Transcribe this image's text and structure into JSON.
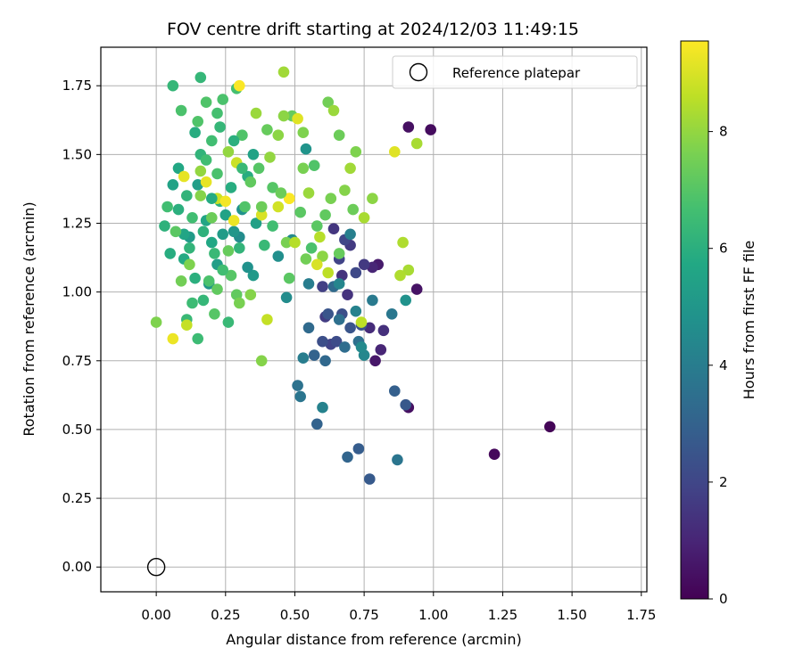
{
  "chart_data": {
    "type": "scatter",
    "title": "FOV centre drift starting at 2024/12/03 11:49:15",
    "xlabel": "Angular distance from reference (arcmin)",
    "ylabel": "Rotation from reference (arcmin)",
    "xlim": [
      -0.2,
      1.77
    ],
    "ylim": [
      -0.09,
      1.89
    ],
    "xticks": [
      "0.00",
      "0.25",
      "0.50",
      "0.75",
      "1.00",
      "1.25",
      "1.50",
      "1.75"
    ],
    "yticks": [
      "0.00",
      "0.25",
      "0.50",
      "0.75",
      "1.00",
      "1.25",
      "1.50",
      "1.75"
    ],
    "grid": true,
    "legend": {
      "position": "top-right",
      "entries": [
        "Reference platepar"
      ]
    },
    "reference_point": {
      "x": 0.0,
      "y": 0.0,
      "marker": "open-circle"
    },
    "colorbar": {
      "label": "Hours from first FF file",
      "min": 0,
      "max": 9.55,
      "ticks": [
        "0",
        "2",
        "4",
        "6",
        "8"
      ],
      "colormap": "viridis"
    },
    "series": [
      {
        "points": [
          [
            1.42,
            0.51,
            0.1
          ],
          [
            1.22,
            0.41,
            0.2
          ],
          [
            0.99,
            1.59,
            0.3
          ],
          [
            0.91,
            1.6,
            0.4
          ],
          [
            0.91,
            0.58,
            0.4
          ],
          [
            0.94,
            1.01,
            0.5
          ],
          [
            0.79,
            0.75,
            0.6
          ],
          [
            0.8,
            1.1,
            0.7
          ],
          [
            0.78,
            1.09,
            1.0
          ],
          [
            0.81,
            0.79,
            1.0
          ],
          [
            0.77,
            0.87,
            1.2
          ],
          [
            0.82,
            0.86,
            1.3
          ],
          [
            0.69,
            0.99,
            1.4
          ],
          [
            0.67,
            1.06,
            1.4
          ],
          [
            0.64,
            1.23,
            1.5
          ],
          [
            0.7,
            1.17,
            1.6
          ],
          [
            0.75,
            1.1,
            1.6
          ],
          [
            0.61,
            0.91,
            1.7
          ],
          [
            0.6,
            1.02,
            1.8
          ],
          [
            0.63,
            0.81,
            1.9
          ],
          [
            0.66,
            1.12,
            1.9
          ],
          [
            0.68,
            1.19,
            2.0
          ],
          [
            0.72,
            1.07,
            2.1
          ],
          [
            0.65,
            0.82,
            2.2
          ],
          [
            0.6,
            0.82,
            2.3
          ],
          [
            0.67,
            0.92,
            2.3
          ],
          [
            0.74,
            0.88,
            2.4
          ],
          [
            0.62,
            0.92,
            2.5
          ],
          [
            0.7,
            0.87,
            2.5
          ],
          [
            0.9,
            0.59,
            2.6
          ],
          [
            0.77,
            0.32,
            2.7
          ],
          [
            0.73,
            0.43,
            2.8
          ],
          [
            0.86,
            0.64,
            2.9
          ],
          [
            0.58,
            0.52,
            3.0
          ],
          [
            0.57,
            0.77,
            3.0
          ],
          [
            0.69,
            0.4,
            3.1
          ],
          [
            0.61,
            0.75,
            3.2
          ],
          [
            0.55,
            0.87,
            3.3
          ],
          [
            0.64,
            1.02,
            3.3
          ],
          [
            0.68,
            0.8,
            3.4
          ],
          [
            0.73,
            0.82,
            3.5
          ],
          [
            0.66,
            0.9,
            3.5
          ],
          [
            0.51,
            0.66,
            3.6
          ],
          [
            0.52,
            0.62,
            3.7
          ],
          [
            0.87,
            0.39,
            3.7
          ],
          [
            0.85,
            0.92,
            3.8
          ],
          [
            0.78,
            0.97,
            3.9
          ],
          [
            0.55,
            1.03,
            4.0
          ],
          [
            0.53,
            0.76,
            4.0
          ],
          [
            0.7,
            1.21,
            4.1
          ],
          [
            0.72,
            0.93,
            4.2
          ],
          [
            0.6,
            0.58,
            4.2
          ],
          [
            0.66,
            1.03,
            4.3
          ],
          [
            0.75,
            0.77,
            4.4
          ],
          [
            0.74,
            0.8,
            4.5
          ],
          [
            0.49,
            1.19,
            4.5
          ],
          [
            0.47,
            0.98,
            4.6
          ],
          [
            0.3,
            1.2,
            4.6
          ],
          [
            0.44,
            1.13,
            4.7
          ],
          [
            0.31,
            1.3,
            4.8
          ],
          [
            0.9,
            0.97,
            4.8
          ],
          [
            0.54,
            1.52,
            4.9
          ],
          [
            0.19,
            1.03,
            5.0
          ],
          [
            0.28,
            1.22,
            5.0
          ],
          [
            0.35,
            1.06,
            5.1
          ],
          [
            0.12,
            1.2,
            5.2
          ],
          [
            0.15,
            1.39,
            5.3
          ],
          [
            0.22,
            1.1,
            5.3
          ],
          [
            0.36,
            1.25,
            5.4
          ],
          [
            0.25,
            1.28,
            5.5
          ],
          [
            0.06,
            1.39,
            5.5
          ],
          [
            0.18,
            1.26,
            5.6
          ],
          [
            0.08,
            1.45,
            5.7
          ],
          [
            0.2,
            1.18,
            5.7
          ],
          [
            0.1,
            1.12,
            5.8
          ],
          [
            0.27,
            1.38,
            5.9
          ],
          [
            0.33,
            1.42,
            5.9
          ],
          [
            0.14,
            1.05,
            6.0
          ],
          [
            0.03,
            1.24,
            6.1
          ],
          [
            0.23,
            1.33,
            6.1
          ],
          [
            0.16,
            1.5,
            6.2
          ],
          [
            0.3,
            1.16,
            6.2
          ],
          [
            0.06,
            1.75,
            6.3
          ],
          [
            0.16,
            1.78,
            6.3
          ],
          [
            0.26,
            0.89,
            6.4
          ],
          [
            0.11,
            0.9,
            6.4
          ],
          [
            0.15,
            0.83,
            6.5
          ],
          [
            0.13,
            0.96,
            6.5
          ],
          [
            0.04,
            1.31,
            6.6
          ],
          [
            0.2,
            1.55,
            6.6
          ],
          [
            0.29,
            1.74,
            6.7
          ],
          [
            0.22,
            1.65,
            6.7
          ],
          [
            0.09,
            1.66,
            6.8
          ],
          [
            0.24,
            1.7,
            6.8
          ],
          [
            0.18,
            1.69,
            6.9
          ],
          [
            0.31,
            1.57,
            6.9
          ],
          [
            0.37,
            1.45,
            7.0
          ],
          [
            0.42,
            1.38,
            7.0
          ],
          [
            0.58,
            1.24,
            7.1
          ],
          [
            0.48,
            1.05,
            7.1
          ],
          [
            0.29,
            0.99,
            7.2
          ],
          [
            0.22,
            1.01,
            7.2
          ],
          [
            0.4,
            1.59,
            7.3
          ],
          [
            0.49,
            1.64,
            7.3
          ],
          [
            0.66,
            1.57,
            7.4
          ],
          [
            0.71,
            1.3,
            7.4
          ],
          [
            0.62,
            1.69,
            7.5
          ],
          [
            0.54,
            1.12,
            7.5
          ],
          [
            0.53,
            1.45,
            7.6
          ],
          [
            0.47,
            1.18,
            7.6
          ],
          [
            0.0,
            0.89,
            7.7
          ],
          [
            0.38,
            0.75,
            7.8
          ],
          [
            0.34,
            0.99,
            7.8
          ],
          [
            0.6,
            1.13,
            7.9
          ],
          [
            0.44,
            1.57,
            7.9
          ],
          [
            0.26,
            1.51,
            8.0
          ],
          [
            0.16,
            1.44,
            8.0
          ],
          [
            0.55,
            1.36,
            8.1
          ],
          [
            0.64,
            1.66,
            8.1
          ],
          [
            0.36,
            1.65,
            8.1
          ],
          [
            0.46,
            1.8,
            8.2
          ],
          [
            0.7,
            1.45,
            8.2
          ],
          [
            0.94,
            1.54,
            8.3
          ],
          [
            0.91,
            1.08,
            8.3
          ],
          [
            0.89,
            1.18,
            8.4
          ],
          [
            0.88,
            1.06,
            8.4
          ],
          [
            0.5,
            1.18,
            8.5
          ],
          [
            0.59,
            1.2,
            8.5
          ],
          [
            0.62,
            1.07,
            8.6
          ],
          [
            0.74,
            0.89,
            8.6
          ],
          [
            0.4,
            0.9,
            8.7
          ],
          [
            0.11,
            0.88,
            8.7
          ],
          [
            0.29,
            1.47,
            8.8
          ],
          [
            0.22,
            1.34,
            8.8
          ],
          [
            0.44,
            1.31,
            8.9
          ],
          [
            0.48,
            1.34,
            8.9
          ],
          [
            0.38,
            1.28,
            9.0
          ],
          [
            0.58,
            1.1,
            9.0
          ],
          [
            0.86,
            1.51,
            9.1
          ],
          [
            0.51,
            1.63,
            9.1
          ],
          [
            0.1,
            1.42,
            9.2
          ],
          [
            0.18,
            1.4,
            9.2
          ],
          [
            0.28,
            1.26,
            9.3
          ],
          [
            0.06,
            0.83,
            9.3
          ],
          [
            0.25,
            1.33,
            9.4
          ],
          [
            0.3,
            1.75,
            9.5
          ],
          [
            0.48,
            1.34,
            9.5
          ],
          [
            0.08,
            1.3,
            6.0
          ],
          [
            0.12,
            1.16,
            6.2
          ],
          [
            0.2,
            1.34,
            5.8
          ],
          [
            0.21,
            1.14,
            6.4
          ],
          [
            0.24,
            1.21,
            5.2
          ],
          [
            0.13,
            1.27,
            6.6
          ],
          [
            0.19,
            1.04,
            6.8
          ],
          [
            0.27,
            1.06,
            7.0
          ],
          [
            0.33,
            1.09,
            4.8
          ],
          [
            0.14,
            1.58,
            5.9
          ],
          [
            0.23,
            1.6,
            6.3
          ],
          [
            0.32,
            1.31,
            6.9
          ],
          [
            0.35,
            1.5,
            5.5
          ],
          [
            0.1,
            1.21,
            5.6
          ],
          [
            0.05,
            1.14,
            5.9
          ],
          [
            0.17,
            1.22,
            6.1
          ],
          [
            0.26,
            1.15,
            7.3
          ],
          [
            0.42,
            1.24,
            6.6
          ],
          [
            0.45,
            1.36,
            7.4
          ],
          [
            0.39,
            1.17,
            6.4
          ],
          [
            0.52,
            1.29,
            7.1
          ],
          [
            0.57,
            1.46,
            6.9
          ],
          [
            0.63,
            1.34,
            7.6
          ],
          [
            0.68,
            1.37,
            7.8
          ],
          [
            0.75,
            1.27,
            8.3
          ],
          [
            0.78,
            1.34,
            7.9
          ],
          [
            0.72,
            1.51,
            7.7
          ],
          [
            0.66,
            1.14,
            7.3
          ],
          [
            0.56,
            1.16,
            6.8
          ],
          [
            0.61,
            1.28,
            7.2
          ],
          [
            0.09,
            1.04,
            7.5
          ],
          [
            0.12,
            1.1,
            7.7
          ],
          [
            0.17,
            0.97,
            6.3
          ],
          [
            0.21,
            0.92,
            7.0
          ],
          [
            0.3,
            0.96,
            7.6
          ],
          [
            0.11,
            1.35,
            6.2
          ],
          [
            0.18,
            1.48,
            6.6
          ],
          [
            0.22,
            1.43,
            6.8
          ],
          [
            0.28,
            1.55,
            6.0
          ],
          [
            0.15,
            1.62,
            6.9
          ],
          [
            0.34,
            1.4,
            7.2
          ],
          [
            0.38,
            1.31,
            7.4
          ],
          [
            0.41,
            1.49,
            8.0
          ],
          [
            0.53,
            1.58,
            7.7
          ],
          [
            0.46,
            1.64,
            7.9
          ],
          [
            0.07,
            1.22,
            7.1
          ],
          [
            0.24,
            1.08,
            6.6
          ],
          [
            0.2,
            1.27,
            7.4
          ],
          [
            0.31,
            1.45,
            6.4
          ],
          [
            0.16,
            1.35,
            7.8
          ]
        ]
      }
    ]
  }
}
